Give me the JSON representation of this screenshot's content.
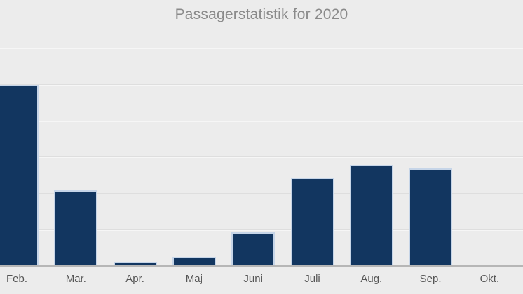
{
  "window": {
    "background_color": "#ececec"
  },
  "chart": {
    "title_color": "#8a8a8a",
    "axis_label_color": "#555555",
    "grid_color": "#dedede",
    "axis_line_color": "#b6b6b6",
    "bar_color": "#123660",
    "bar_border_color": "#c6d5e8"
  },
  "chart_data": {
    "type": "bar",
    "title": "Passagerstatistik for 2020",
    "categories": [
      "Feb.",
      "Mar.",
      "Apr.",
      "Maj",
      "Juni",
      "Juli",
      "Aug.",
      "Sep.",
      "Okt."
    ],
    "values": [
      4.97,
      2.07,
      0.1,
      0.23,
      0.91,
      2.42,
      2.77,
      2.66,
      0
    ],
    "units": "relative (gridline intervals, no y-axis tick labels visible)",
    "xlabel": "",
    "ylabel": "",
    "ylim": [
      0,
      6
    ],
    "grid": true,
    "legend": false
  }
}
